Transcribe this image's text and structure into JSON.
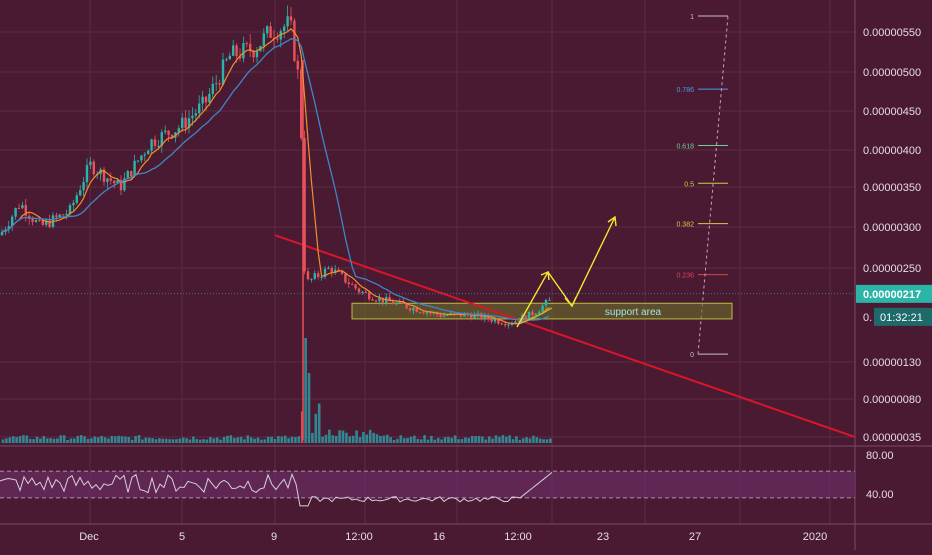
{
  "theme": {
    "background": "#4a1a32",
    "grid": "#5c2a44",
    "text": "#e6dde2",
    "up": "#2bb4a8",
    "down": "#e8525a",
    "ma_fast": "#f0902a",
    "ma_slow": "#3f86c9",
    "trendline": "#d8162a",
    "projection": "#f2e82c",
    "support_fill": "#6b6f2a",
    "support_border": "#b7c03a",
    "rsi_line": "#d9d0d8",
    "rsi_band": "#6a2d64",
    "volume": "#2d9aa2"
  },
  "price_axis": {
    "labels": [
      "0.00000550",
      "0.00000500",
      "0.00000450",
      "0.00000400",
      "0.00000350",
      "0.00000300",
      "0.00000250",
      "0.00000130",
      "0.00000080",
      "0.00000035"
    ],
    "current_price": "0.00000217",
    "countdown_prefix": "0.",
    "countdown": "01:32:21"
  },
  "time_axis": {
    "labels": [
      "Dec",
      "5",
      "9",
      "12:00",
      "16",
      "12:00",
      "23",
      "27",
      "2020"
    ]
  },
  "rsi_axis": {
    "labels": [
      "80.00",
      "40.00"
    ]
  },
  "annotations": {
    "support_label": "support area",
    "fib_levels": [
      "1",
      "0.786",
      "0.618",
      "0.5",
      "0.382",
      "0.236",
      "0"
    ]
  },
  "chart_data": {
    "type": "candlestick",
    "title": "",
    "price_min": 3e-07,
    "price_max": 5.8e-06,
    "series": [
      {
        "name": "",
        "kind": "moving-average-fast"
      },
      {
        "name": "",
        "kind": "moving-average-slow"
      }
    ],
    "support_area": [
      1.85e-06,
      2.05e-06
    ],
    "fibonacci": {
      "levels": [
        1,
        0.786,
        0.618,
        0.5,
        0.382,
        0.236,
        0
      ],
      "price_at_0": 1.4e-06,
      "price_at_1": 5.7e-06
    },
    "trendline": [
      [
        0.0,
        2.9e-06
      ],
      [
        1.0,
        3.5e-07
      ]
    ],
    "rsi": {
      "upper": 70,
      "lower": 30,
      "last": 68
    }
  }
}
